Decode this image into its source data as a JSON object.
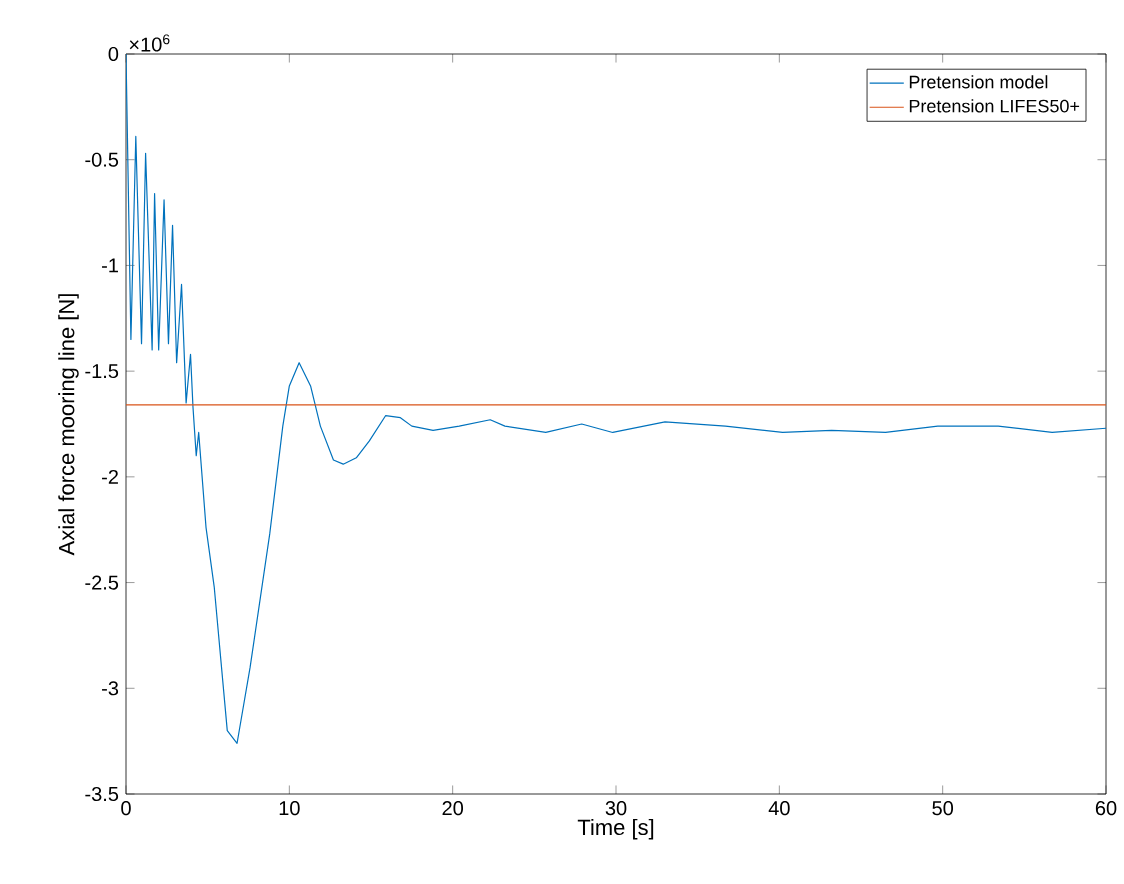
{
  "chart_data": {
    "type": "line",
    "xlabel": "Time [s]",
    "ylabel": "Axial force mooring line [N]",
    "annotations": [
      "×10$^{6}$"
    ],
    "xlim": [
      0,
      60
    ],
    "ylim": [
      -3.5,
      0
    ],
    "xticks": [
      0,
      10,
      20,
      30,
      40,
      50,
      60
    ],
    "yticks": [
      -3.5,
      -3,
      -2.5,
      -2,
      -1.5,
      -1,
      -0.5,
      0
    ],
    "legend": "top right",
    "grid": false,
    "series": [
      {
        "name": "Pretension model",
        "color": "#0072bd",
        "x": [
          0,
          0.3,
          0.6,
          0.95,
          1.2,
          1.6,
          1.75,
          2.0,
          2.33,
          2.6,
          2.85,
          3.1,
          3.4,
          3.68,
          3.95,
          4.1,
          4.3,
          4.45,
          4.9,
          5.4,
          6.2,
          6.8,
          7.6,
          8.8,
          9.6,
          10.0,
          10.6,
          11.3,
          11.9,
          12.7,
          13.3,
          14.1,
          14.9,
          15.9,
          16.8,
          17.5,
          18.8,
          20.4,
          22.3,
          23.2,
          25.7,
          27.9,
          29.8,
          33.0,
          36.7,
          40.2,
          43.2,
          46.5,
          49.7,
          53.4,
          56.7,
          60
        ],
        "values": [
          0,
          -1.35,
          -0.39,
          -1.37,
          -0.47,
          -1.4,
          -0.66,
          -1.4,
          -0.69,
          -1.37,
          -0.81,
          -1.46,
          -1.09,
          -1.65,
          -1.42,
          -1.67,
          -1.9,
          -1.79,
          -2.24,
          -2.52,
          -3.2,
          -3.26,
          -2.9,
          -2.27,
          -1.76,
          -1.57,
          -1.46,
          -1.57,
          -1.76,
          -1.92,
          -1.94,
          -1.91,
          -1.83,
          -1.71,
          -1.72,
          -1.76,
          -1.78,
          -1.76,
          -1.73,
          -1.76,
          -1.79,
          -1.75,
          -1.79,
          -1.74,
          -1.76,
          -1.79,
          -1.78,
          -1.79,
          -1.76,
          -1.76,
          -1.79,
          -1.77
        ]
      },
      {
        "name": "Pretension LIFES50+",
        "color": "#d95319",
        "x": [
          0,
          60
        ],
        "values": [
          -1.66,
          -1.66
        ]
      }
    ]
  }
}
